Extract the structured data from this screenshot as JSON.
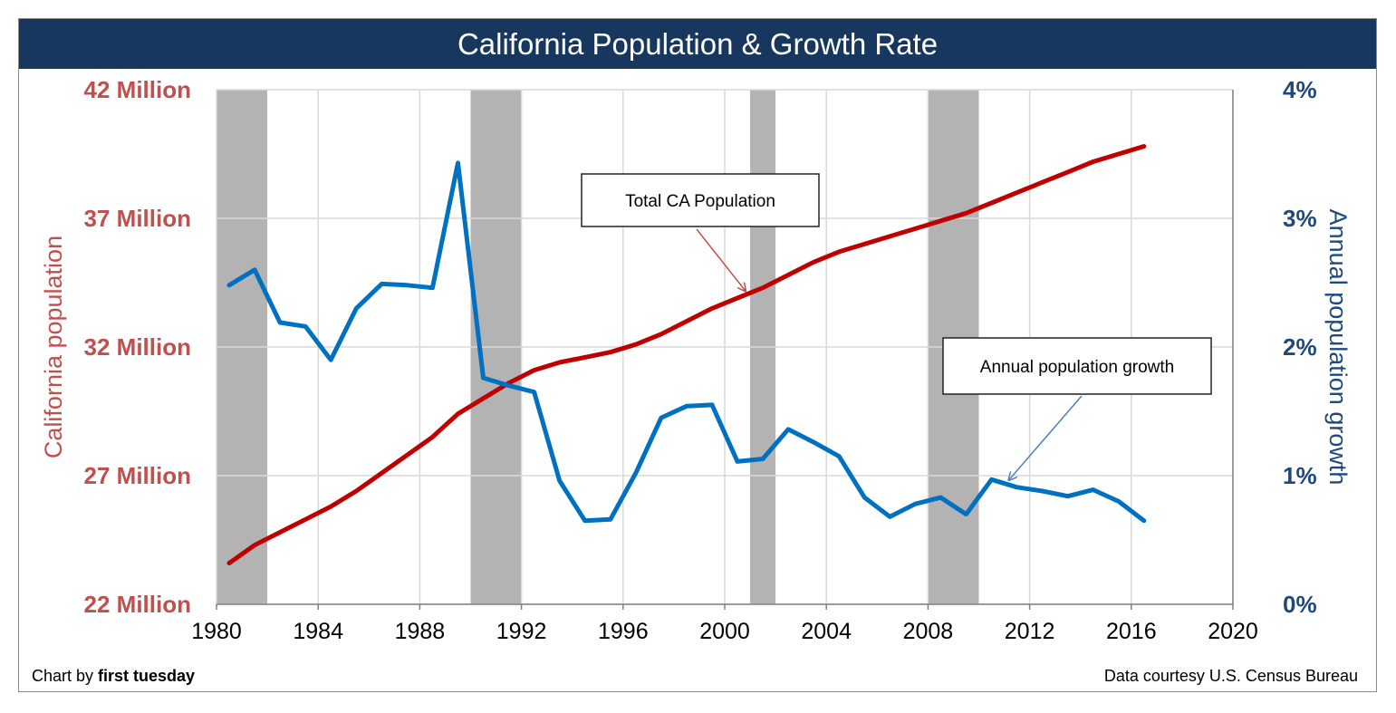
{
  "title": "California Population & Growth Rate",
  "credits": {
    "left_prefix": "Chart by ",
    "left_brand": "first tuesday",
    "right": "Data courtesy U.S. Census Bureau"
  },
  "colors": {
    "population": "#c00000",
    "growth": "#0070c0",
    "left_axis_text": "#c0504d",
    "right_axis_text": "#1f497d",
    "recession_band": "#b3b3b3",
    "title_bar": "#17375e"
  },
  "chart_data": {
    "type": "line",
    "title": "California Population & Growth Rate",
    "xlim": [
      1980,
      2020
    ],
    "x_ticks": [
      "1980",
      "1984",
      "1988",
      "1992",
      "1996",
      "2000",
      "2004",
      "2008",
      "2012",
      "2016",
      "2020"
    ],
    "y_left": {
      "label": "California population",
      "lim": [
        22,
        42
      ],
      "ticks": [
        "22 Million",
        "27 Million",
        "32 Million",
        "37 Million",
        "42 Million"
      ],
      "tick_values": [
        22,
        27,
        32,
        37,
        42
      ]
    },
    "y_right": {
      "label": "Annual population growth",
      "lim": [
        0,
        4
      ],
      "ticks": [
        "0%",
        "1%",
        "2%",
        "3%",
        "4%"
      ],
      "tick_values": [
        0,
        1,
        2,
        3,
        4
      ]
    },
    "grid": true,
    "recession_bands": [
      [
        1980,
        1982
      ],
      [
        1990,
        1992
      ],
      [
        2001,
        2002
      ],
      [
        2008,
        2010
      ]
    ],
    "series": [
      {
        "name": "Total CA Population",
        "axis": "left",
        "color": "#c00000",
        "x": [
          1980.5,
          1981.5,
          1982.5,
          1983.5,
          1984.5,
          1985.5,
          1986.5,
          1987.5,
          1988.5,
          1989.5,
          1990.5,
          1991.5,
          1992.5,
          1993.5,
          1994.5,
          1995.5,
          1996.5,
          1997.5,
          1998.5,
          1999.5,
          2000.5,
          2001.5,
          2002.5,
          2003.5,
          2004.5,
          2005.5,
          2006.5,
          2007.5,
          2008.5,
          2009.5,
          2010.5,
          2011.5,
          2012.5,
          2013.5,
          2014.5,
          2015.5,
          2016.5
        ],
        "values": [
          23.6,
          24.3,
          24.8,
          25.3,
          25.8,
          26.4,
          27.1,
          27.8,
          28.5,
          29.4,
          30.0,
          30.6,
          31.1,
          31.4,
          31.6,
          31.8,
          32.1,
          32.5,
          33.0,
          33.5,
          33.9,
          34.3,
          34.8,
          35.3,
          35.7,
          36.0,
          36.3,
          36.6,
          36.9,
          37.2,
          37.6,
          38.0,
          38.4,
          38.8,
          39.2,
          39.5,
          39.8
        ]
      },
      {
        "name": "Annual population growth",
        "axis": "right",
        "color": "#0070c0",
        "x": [
          1980.5,
          1981.5,
          1982.5,
          1983.5,
          1984.5,
          1985.5,
          1986.5,
          1987.5,
          1988.5,
          1989.5,
          1990.5,
          1991.5,
          1992.5,
          1993.5,
          1994.5,
          1995.5,
          1996.5,
          1997.5,
          1998.5,
          1999.5,
          2000.5,
          2001.5,
          2002.5,
          2003.5,
          2004.5,
          2005.5,
          2006.5,
          2007.5,
          2008.5,
          2009.5,
          2010.5,
          2011.5,
          2012.5,
          2013.5,
          2014.5,
          2015.5,
          2016.5
        ],
        "values": [
          2.48,
          2.6,
          2.19,
          2.16,
          1.9,
          2.3,
          2.49,
          2.48,
          2.46,
          3.43,
          1.76,
          1.7,
          1.65,
          0.96,
          0.65,
          0.66,
          1.02,
          1.45,
          1.54,
          1.55,
          1.11,
          1.13,
          1.36,
          1.26,
          1.15,
          0.83,
          0.68,
          0.78,
          0.83,
          0.7,
          0.97,
          0.91,
          0.88,
          0.84,
          0.89,
          0.8,
          0.65
        ]
      }
    ],
    "annotations": [
      {
        "text": "Total CA Population",
        "target": [
          2000.8,
          34.2
        ],
        "axis": "left"
      },
      {
        "text": "Annual population growth",
        "target": [
          2011.2,
          0.97
        ],
        "axis": "right"
      }
    ]
  }
}
